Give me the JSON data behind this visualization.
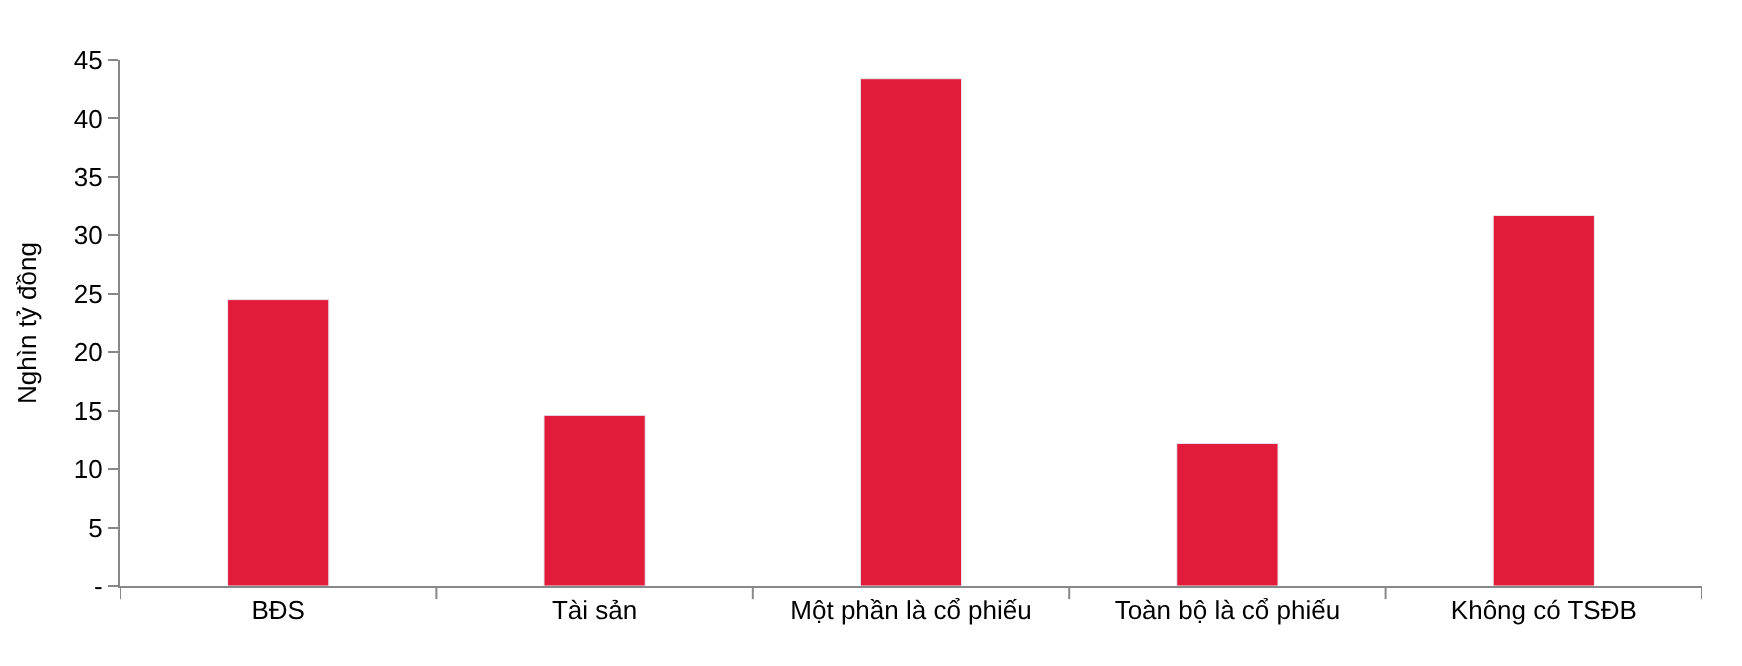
{
  "chart_data": {
    "type": "bar",
    "ylabel": "Nghìn tỷ đồng",
    "categories": [
      "BĐS",
      "Tài sản",
      "Một phần là cổ phiếu",
      "Toàn bộ là cổ phiếu",
      "Không có TSĐB"
    ],
    "series": [
      {
        "color": "#e31b3a",
        "values": [
          24.5,
          14.6,
          43.4,
          12.2,
          31.7
        ]
      }
    ],
    "ylim": [
      0,
      45
    ],
    "yticks": [
      {
        "value": 0,
        "label": "-"
      },
      5,
      10,
      15,
      20,
      25,
      30,
      35,
      40,
      45
    ]
  }
}
